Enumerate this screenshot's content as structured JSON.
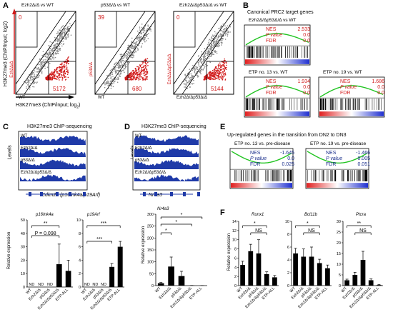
{
  "panels": {
    "A": {
      "letter": "A",
      "ylabel": "H3K27me3 (ChIP/input; log2)",
      "xlabel": "H3K27me3 (ChIP/input; log",
      "xlabel_sub": "2",
      "xlabel_end": ")",
      "scatter": [
        {
          "title": "Ezh2Δ/Δ vs WT",
          "top_left": "0",
          "bottom_right": "5172",
          "x_axis": "WT",
          "y_axis": "Ezh2Δ/Δ"
        },
        {
          "title": "p53Δ/Δ vs WT",
          "top_left": "39",
          "bottom_right": "680",
          "x_axis": "WT",
          "y_axis": "p53Δ/Δ"
        },
        {
          "title": "Ezh2Δ/Δp53Δ/Δ vs WT",
          "top_left": "0",
          "bottom_right": "5144",
          "x_axis": "Ezh2Δ/Δp53Δ/Δ",
          "y_axis": "Ezh2Δ/Δp53Δ/Δ"
        }
      ]
    },
    "B": {
      "letter": "B",
      "title": "Canonical PRC2 target genes",
      "plots": [
        {
          "title": "Ezh2Δ/Δp53Δ/Δ vs WT",
          "nes": "2.533",
          "p": "0.0",
          "fdr": "0.0"
        },
        {
          "title": "ETP no. 13 vs. WT",
          "nes": "1.934",
          "p": "0.0",
          "fdr": "0.0"
        },
        {
          "title": "ETP no. 19 vs. WT",
          "nes": "1.686",
          "p": "0.0",
          "fdr": "0.0"
        }
      ],
      "labels": {
        "nes": "NES",
        "p": "P value",
        "fdr": "FDR"
      }
    },
    "C": {
      "letter": "C",
      "title": "H3K27me3 ChIP-sequencing",
      "tracks": [
        "WT",
        "Ezh2Δ/Δ",
        "p53Δ/Δ",
        "Ezh2Δ/Δp53Δ/Δ"
      ],
      "levels": "Levels",
      "gene": "Cdkn2a (p16Ink4a/p19Arf)",
      "bar_titles": [
        "p16Ink4a",
        "p19Arf"
      ],
      "ylabel": "Relative expression",
      "nd": "ND",
      "pval": "P = 0.098",
      "sig": "**",
      "sig3": "***",
      "categories": [
        "WT",
        "Ezh2Δ/Δ",
        "p53Δ/Δ",
        "Ezh2Δ/Δp53Δ/Δ",
        "ETP-ALL"
      ]
    },
    "D": {
      "letter": "D",
      "title": "H3K27me3 ChIP-sequencing",
      "tracks": [
        "WT",
        "Ezh2Δ/Δ",
        "p53Δ/Δ",
        "Ezh2Δ/Δp53Δ/Δ"
      ],
      "levels": "Levels",
      "gene": "Nr4a3",
      "bar_title": "Nr4a3",
      "ylabel": "Relative expression",
      "sig": "*",
      "categories": [
        "WT",
        "Ezh2Δ/Δ",
        "p53Δ/Δ",
        "Ezh2Δ/Δp53Δ/Δ",
        "ETP-ALL"
      ]
    },
    "E": {
      "letter": "E",
      "title": "Up-regulated genes in the transition from DN2 to DN3",
      "plots": [
        {
          "title": "ETP no. 13 vs. pre-disease",
          "nes": "-1.645",
          "p": "0.0",
          "fdr": "0.025"
        },
        {
          "title": "ETP no. 19 vs. pre-disease",
          "nes": "-1.466",
          "p": "0.005",
          "fdr": "0.051"
        }
      ]
    },
    "F": {
      "letter": "F",
      "genes": [
        "Runx1",
        "Bcl11b",
        "Ptcra"
      ],
      "ylabel": "Relative expression",
      "ns": "NS",
      "categories": [
        "WT",
        "Ezh2Δ/Δ",
        "p53Δ/Δ",
        "Ezh2Δ/Δp53Δ/Δ",
        "ETP-ALL"
      ]
    }
  },
  "colors": {
    "red": "#d11a1a",
    "green": "#22c422",
    "navy": "#1a2f8c",
    "track": "#1f3aa8"
  },
  "chart_data": [
    {
      "type": "bar",
      "title": "p16Ink4a",
      "categories": [
        "WT",
        "Ezh2Δ/Δ",
        "p53Δ/Δ",
        "Ezh2Δ/Δp53Δ/Δ",
        "ETP-ALL"
      ],
      "values": [
        0,
        0,
        0,
        17,
        12
      ],
      "errors": [
        0,
        0,
        0,
        15,
        8
      ],
      "ylabel": "Relative expression",
      "ylim": [
        0,
        50
      ],
      "yticks": [
        0,
        10,
        20,
        30,
        40,
        50
      ]
    },
    {
      "type": "bar",
      "title": "p19Arf",
      "categories": [
        "WT",
        "Ezh2Δ/Δ",
        "p53Δ/Δ",
        "Ezh2Δ/Δp53Δ/Δ",
        "ETP-ALL"
      ],
      "values": [
        0,
        0,
        0,
        3,
        6
      ],
      "errors": [
        0,
        0,
        0,
        0.5,
        0.8
      ],
      "ylabel": "",
      "ylim": [
        0,
        10
      ],
      "yticks": [
        0,
        2,
        4,
        6,
        8,
        10
      ]
    },
    {
      "type": "bar",
      "title": "Nr4a3",
      "categories": [
        "WT",
        "Ezh2Δ/Δ",
        "p53Δ/Δ",
        "Ezh2Δ/Δp53Δ/Δ",
        "ETP-ALL"
      ],
      "values": [
        10,
        80,
        40,
        0.5,
        0.3
      ],
      "errors": [
        3,
        40,
        20,
        0.3,
        0.2
      ],
      "ylabel": "Relative expression",
      "ylim": [
        0,
        300
      ],
      "yticks": [
        0,
        50,
        100,
        150,
        200,
        250,
        300
      ]
    },
    {
      "type": "bar",
      "title": "Runx1",
      "categories": [
        "WT",
        "Ezh2Δ/Δ",
        "p53Δ/Δ",
        "Ezh2Δ/Δp53Δ/Δ",
        "ETP-ALL"
      ],
      "values": [
        4.5,
        7.5,
        7,
        2.5,
        1.8
      ],
      "errors": [
        0.8,
        1.5,
        3,
        0.5,
        0.4
      ],
      "ylabel": "Relative expression",
      "ylim": [
        0,
        14
      ],
      "yticks": [
        0,
        2,
        4,
        6,
        8,
        10,
        12,
        14
      ]
    },
    {
      "type": "bar",
      "title": "Bcl11b",
      "categories": [
        "WT",
        "Ezh2Δ/Δ",
        "p53Δ/Δ",
        "Ezh2Δ/Δp53Δ/Δ",
        "ETP-ALL"
      ],
      "values": [
        5,
        4.5,
        4.5,
        3.5,
        2.7
      ],
      "errors": [
        0.8,
        1.2,
        1.5,
        0.6,
        0.5
      ],
      "ylabel": "",
      "ylim": [
        0,
        10
      ],
      "yticks": [
        0,
        2,
        4,
        6,
        8,
        10
      ]
    },
    {
      "type": "bar",
      "title": "Ptcra",
      "categories": [
        "WT",
        "Ezh2Δ/Δ",
        "p53Δ/Δ",
        "Ezh2Δ/Δp53Δ/Δ",
        "ETP-ALL"
      ],
      "values": [
        2.5,
        5,
        12,
        2.5,
        0.3
      ],
      "errors": [
        0.5,
        1.2,
        4,
        0.6,
        0.2
      ],
      "ylabel": "",
      "ylim": [
        0,
        30
      ],
      "yticks": [
        0,
        5,
        10,
        15,
        20,
        25,
        30
      ]
    }
  ]
}
